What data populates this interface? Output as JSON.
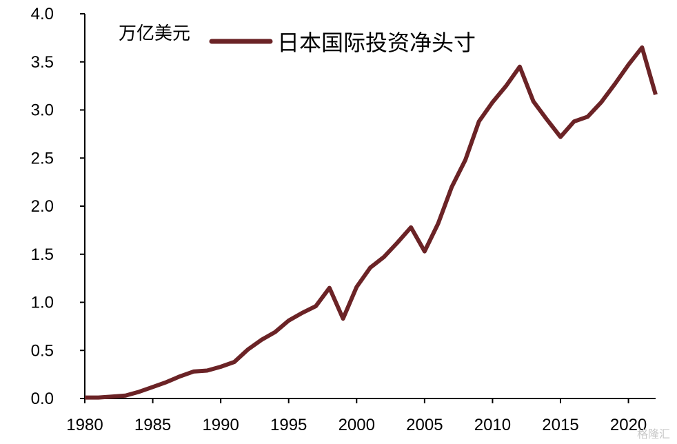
{
  "chart_data": {
    "type": "line",
    "ylabel": "万亿美元",
    "ylim": [
      0,
      4.0
    ],
    "xlim": [
      1980,
      2022
    ],
    "yticks": [
      "0.0",
      "0.5",
      "1.0",
      "1.5",
      "2.0",
      "2.5",
      "3.0",
      "3.5",
      "4.0"
    ],
    "xticks": [
      "1980",
      "1985",
      "1990",
      "1995",
      "2000",
      "2005",
      "2010",
      "2015",
      "2020"
    ],
    "legend_position": "top",
    "grid": false,
    "series": [
      {
        "name": "日本国际投资净头寸",
        "color": "#6b2326",
        "x": [
          1980,
          1981,
          1982,
          1983,
          1984,
          1985,
          1986,
          1987,
          1988,
          1989,
          1990,
          1991,
          1992,
          1993,
          1994,
          1995,
          1996,
          1997,
          1998,
          1999,
          2000,
          2001,
          2002,
          2003,
          2004,
          2005,
          2006,
          2007,
          2008,
          2009,
          2010,
          2011,
          2012,
          2013,
          2014,
          2015,
          2016,
          2017,
          2018,
          2019,
          2020,
          2021,
          2022
        ],
        "y": [
          0.01,
          0.01,
          0.02,
          0.03,
          0.07,
          0.12,
          0.17,
          0.23,
          0.28,
          0.29,
          0.33,
          0.38,
          0.51,
          0.61,
          0.69,
          0.81,
          0.89,
          0.96,
          1.15,
          0.83,
          1.16,
          1.36,
          1.47,
          1.62,
          1.78,
          1.53,
          1.82,
          2.2,
          2.48,
          2.88,
          3.08,
          3.25,
          3.45,
          3.09,
          2.9,
          2.72,
          2.88,
          2.93,
          3.08,
          3.27,
          3.47,
          3.65,
          3.16
        ]
      }
    ]
  },
  "watermark": "格隆汇"
}
